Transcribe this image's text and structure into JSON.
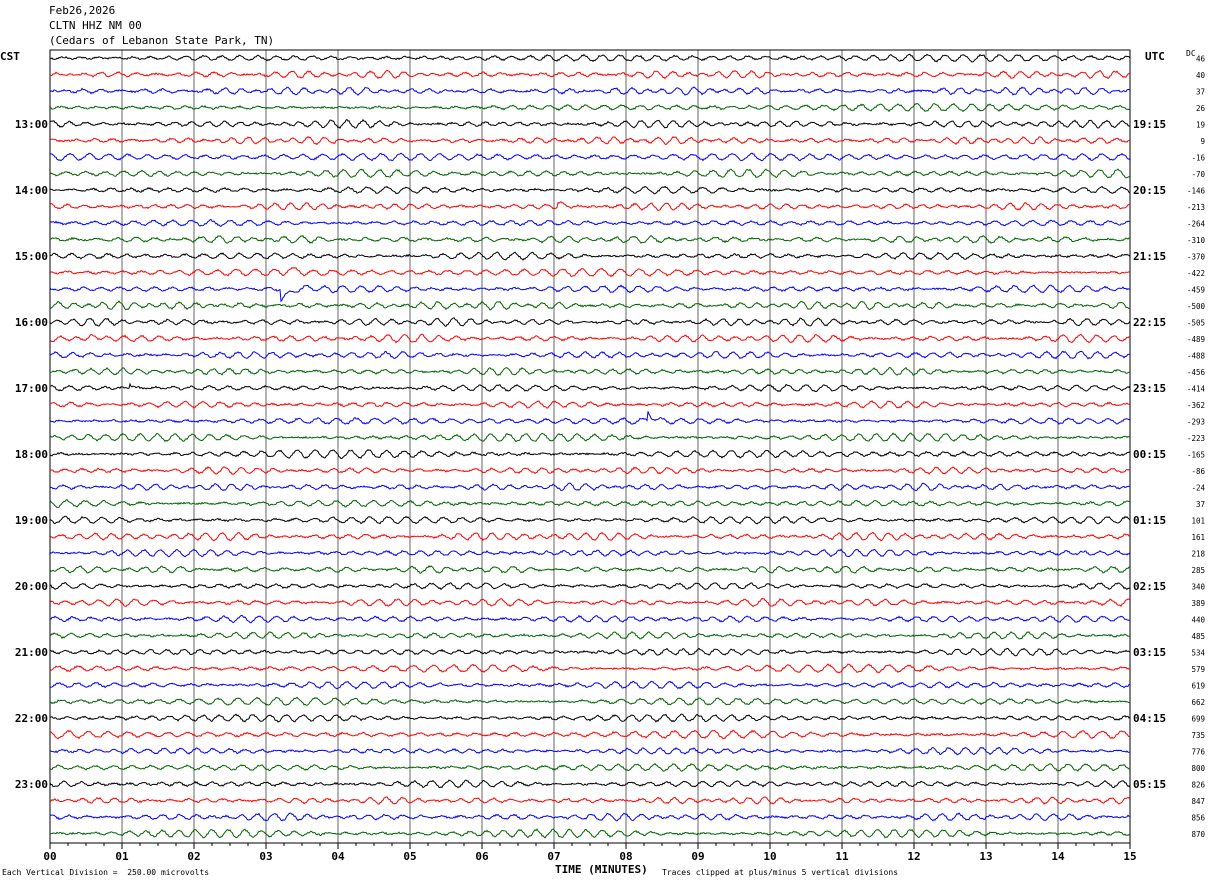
{
  "header": {
    "date": "Feb26,2026",
    "station": "CLTN HHZ NM 00",
    "location": "(Cedars of Lebanon State Park, TN)"
  },
  "left_axis_label": "CST",
  "right_axis_label": "UTC",
  "dc_label": "DC",
  "footer": {
    "scale_note": "Each Vertical Division =  250.00 microvolts",
    "xlabel": "TIME (MINUTES)",
    "clip_note": "Traces clipped at plus/minus 5 vertical divisions"
  },
  "colors": {
    "cycle": [
      "#000000",
      "#ff0000",
      "#0000ff",
      "#006400"
    ],
    "grid": "#000000"
  },
  "chart_data": {
    "type": "line",
    "title": "CLTN HHZ NM 00",
    "xlabel": "TIME (MINUTES)",
    "xlim": [
      0,
      15
    ],
    "x_ticks": [
      "00",
      "01",
      "02",
      "03",
      "04",
      "05",
      "06",
      "07",
      "08",
      "09",
      "10",
      "11",
      "12",
      "13",
      "14",
      "15"
    ],
    "grid": true,
    "left_time_labels": [
      "13:00",
      "14:00",
      "15:00",
      "16:00",
      "17:00",
      "18:00",
      "19:00",
      "20:00",
      "21:00",
      "22:00",
      "23:00"
    ],
    "right_time_labels": [
      "19:15",
      "20:15",
      "21:15",
      "22:15",
      "23:15",
      "00:15",
      "01:15",
      "02:15",
      "03:15",
      "04:15",
      "05:15"
    ],
    "traces_per_hour": 4,
    "trace_count": 48,
    "dc_offsets": [
      46,
      40,
      37,
      26,
      19,
      9,
      -16,
      -70,
      -146,
      -213,
      -264,
      -310,
      -370,
      -422,
      -459,
      -500,
      -505,
      -489,
      -488,
      -456,
      -414,
      -362,
      -293,
      -223,
      -165,
      -86,
      -24,
      37,
      101,
      161,
      218,
      285,
      340,
      389,
      440,
      485,
      534,
      579,
      619,
      662,
      699,
      735,
      776,
      800,
      826,
      847,
      856,
      870
    ],
    "events": [
      {
        "trace": 9,
        "minute": 7.05,
        "amp": 0.45,
        "dur": 0.25
      },
      {
        "trace": 13,
        "minute": 3.25,
        "amp": 1.8,
        "dur": 0.25
      },
      {
        "trace": 14,
        "minute": 3.2,
        "amp": 1.2,
        "dur": 0.55
      },
      {
        "trace": 17,
        "minute": 0.55,
        "amp": 0.3,
        "dur": 0.35
      },
      {
        "trace": 20,
        "minute": 1.1,
        "amp": 0.9,
        "dur": 0.2
      },
      {
        "trace": 22,
        "minute": 8.3,
        "amp": 1.1,
        "dur": 0.2
      }
    ]
  }
}
